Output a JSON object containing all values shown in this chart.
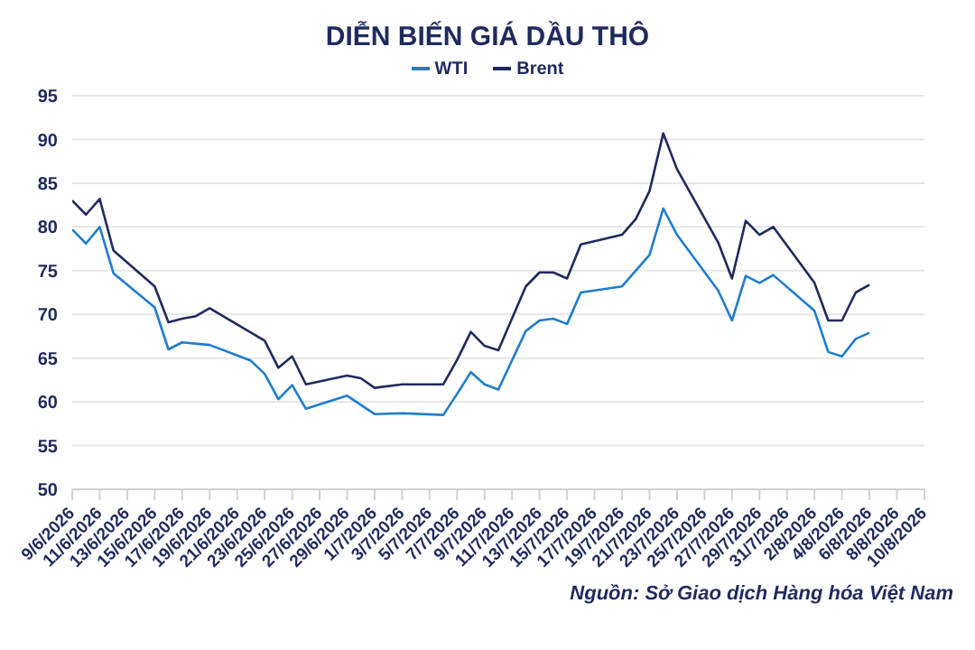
{
  "chart_data": {
    "type": "line",
    "title": "DIỄN BIẾN GIÁ DẦU THÔ",
    "series": [
      {
        "name": "WTI",
        "color": "#1f7ccc",
        "x": [
          "2026-06-09",
          "2026-06-10",
          "2026-06-11",
          "2026-06-12",
          "2026-06-15",
          "2026-06-16",
          "2026-06-17",
          "2026-06-19",
          "2026-06-22",
          "2026-06-23",
          "2026-06-24",
          "2026-06-25",
          "2026-06-26",
          "2026-06-29",
          "2026-07-01",
          "2026-07-03",
          "2026-07-06",
          "2026-07-07",
          "2026-07-08",
          "2026-07-09",
          "2026-07-10",
          "2026-07-12",
          "2026-07-13",
          "2026-07-14",
          "2026-07-15",
          "2026-07-16",
          "2026-07-19",
          "2026-07-21",
          "2026-07-22",
          "2026-07-23",
          "2026-07-26",
          "2026-07-27",
          "2026-07-28",
          "2026-07-29",
          "2026-07-30",
          "2026-08-02",
          "2026-08-03",
          "2026-08-04",
          "2026-08-05",
          "2026-08-06"
        ],
        "values": [
          79.7,
          78.1,
          80.0,
          74.7,
          70.8,
          66.0,
          66.8,
          66.5,
          64.7,
          63.2,
          60.3,
          61.9,
          59.2,
          60.7,
          58.6,
          58.7,
          58.5,
          60.9,
          63.4,
          62.0,
          61.4,
          68.1,
          69.3,
          69.5,
          68.9,
          72.5,
          73.2,
          76.8,
          82.1,
          79.1,
          72.7,
          69.3,
          74.4,
          73.6,
          74.5,
          70.4,
          65.7,
          65.2,
          67.2,
          67.9
        ]
      },
      {
        "name": "Brent",
        "color": "#1f2a5e",
        "x": [
          "2026-06-09",
          "2026-06-10",
          "2026-06-11",
          "2026-06-12",
          "2026-06-15",
          "2026-06-16",
          "2026-06-17",
          "2026-06-18",
          "2026-06-19",
          "2026-06-23",
          "2026-06-24",
          "2026-06-25",
          "2026-06-26",
          "2026-06-29",
          "2026-06-30",
          "2026-07-01",
          "2026-07-03",
          "2026-07-06",
          "2026-07-07",
          "2026-07-08",
          "2026-07-09",
          "2026-07-10",
          "2026-07-12",
          "2026-07-13",
          "2026-07-14",
          "2026-07-15",
          "2026-07-16",
          "2026-07-19",
          "2026-07-20",
          "2026-07-21",
          "2026-07-22",
          "2026-07-23",
          "2026-07-26",
          "2026-07-27",
          "2026-07-28",
          "2026-07-29",
          "2026-07-30",
          "2026-08-02",
          "2026-08-03",
          "2026-08-04",
          "2026-08-05",
          "2026-08-06"
        ],
        "values": [
          83.0,
          81.4,
          83.2,
          77.3,
          73.2,
          69.1,
          69.5,
          69.8,
          70.7,
          67.0,
          63.9,
          65.2,
          62.0,
          63.0,
          62.7,
          61.6,
          62.0,
          62.0,
          64.8,
          68.0,
          66.4,
          65.9,
          73.2,
          74.8,
          74.8,
          74.1,
          78.0,
          79.1,
          80.9,
          84.1,
          90.7,
          86.6,
          78.2,
          74.1,
          80.7,
          79.1,
          80.0,
          73.6,
          69.3,
          69.3,
          72.5,
          73.4
        ]
      }
    ],
    "xlim": [
      "2026-06-09",
      "2026-08-10"
    ],
    "xticks": [
      {
        "value": "2026-06-09",
        "label": "9/6/2026"
      },
      {
        "value": "2026-06-11",
        "label": "11/6/2026"
      },
      {
        "value": "2026-06-13",
        "label": "13/6/2026"
      },
      {
        "value": "2026-06-15",
        "label": "15/6/2026"
      },
      {
        "value": "2026-06-17",
        "label": "17/6/2026"
      },
      {
        "value": "2026-06-19",
        "label": "19/6/2026"
      },
      {
        "value": "2026-06-21",
        "label": "21/6/2026"
      },
      {
        "value": "2026-06-23",
        "label": "23/6/2026"
      },
      {
        "value": "2026-06-25",
        "label": "25/6/2026"
      },
      {
        "value": "2026-06-27",
        "label": "27/6/2026"
      },
      {
        "value": "2026-06-29",
        "label": "29/6/2026"
      },
      {
        "value": "2026-07-01",
        "label": "1/7/2026"
      },
      {
        "value": "2026-07-03",
        "label": "3/7/2026"
      },
      {
        "value": "2026-07-05",
        "label": "5/7/2026"
      },
      {
        "value": "2026-07-07",
        "label": "7/7/2026"
      },
      {
        "value": "2026-07-09",
        "label": "9/7/2026"
      },
      {
        "value": "2026-07-11",
        "label": "11/7/2026"
      },
      {
        "value": "2026-07-13",
        "label": "13/7/2026"
      },
      {
        "value": "2026-07-15",
        "label": "15/7/2026"
      },
      {
        "value": "2026-07-17",
        "label": "17/7/2026"
      },
      {
        "value": "2026-07-19",
        "label": "19/7/2026"
      },
      {
        "value": "2026-07-21",
        "label": "21/7/2026"
      },
      {
        "value": "2026-07-23",
        "label": "23/7/2026"
      },
      {
        "value": "2026-07-25",
        "label": "25/7/2026"
      },
      {
        "value": "2026-07-27",
        "label": "27/7/2026"
      },
      {
        "value": "2026-07-29",
        "label": "29/7/2026"
      },
      {
        "value": "2026-07-31",
        "label": "31/7/2026"
      },
      {
        "value": "2026-08-02",
        "label": "2/8/2026"
      },
      {
        "value": "2026-08-04",
        "label": "4/8/2026"
      },
      {
        "value": "2026-08-06",
        "label": "6/8/2026"
      },
      {
        "value": "2026-08-08",
        "label": "8/8/2026"
      },
      {
        "value": "2026-08-10",
        "label": "10/8/2026"
      }
    ],
    "ylim": [
      50,
      95
    ],
    "yticks": [
      50,
      55,
      60,
      65,
      70,
      75,
      80,
      85,
      90,
      95
    ],
    "grid": "y",
    "legend": "top",
    "marker": "none",
    "line_style": "solid",
    "annotations": [
      "Nguồn: Sở Giao dịch Hàng hóa Việt Nam"
    ]
  }
}
